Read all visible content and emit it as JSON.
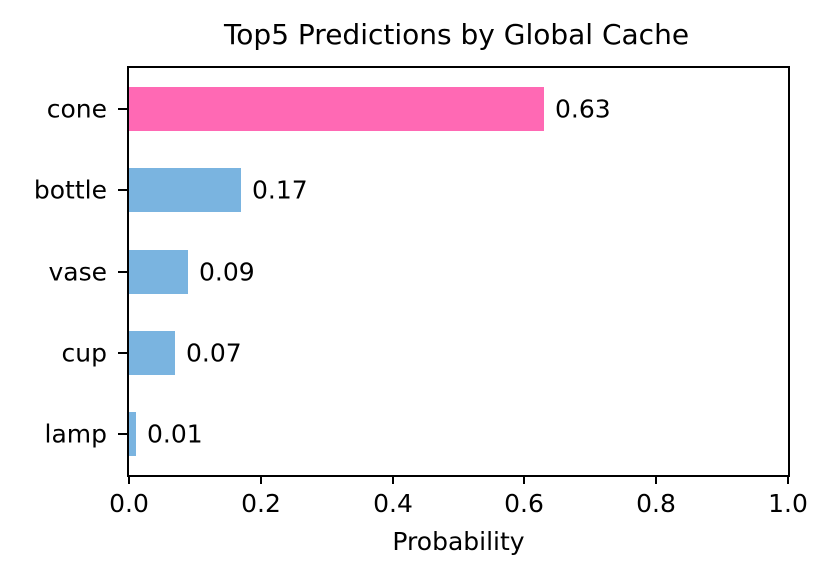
{
  "chart_data": {
    "type": "bar",
    "orientation": "horizontal",
    "title": "Top5 Predictions by Global Cache",
    "xlabel": "Probability",
    "ylabel": "",
    "categories": [
      "cone",
      "bottle",
      "vase",
      "cup",
      "lamp"
    ],
    "values": [
      0.63,
      0.17,
      0.09,
      0.07,
      0.01
    ],
    "value_labels": [
      "0.63",
      "0.17",
      "0.09",
      "0.07",
      "0.01"
    ],
    "bar_colors": [
      "#FF69B4",
      "#7AB4E0",
      "#7AB4E0",
      "#7AB4E0",
      "#7AB4E0"
    ],
    "xlim": [
      0.0,
      1.0
    ],
    "xticks": [
      0.0,
      0.2,
      0.4,
      0.6,
      0.8,
      1.0
    ],
    "xtick_labels": [
      "0.0",
      "0.2",
      "0.4",
      "0.6",
      "0.8",
      "1.0"
    ],
    "grid": false,
    "legend": null,
    "frame": "full-box",
    "axis_color": "#000000",
    "text_color": "#000000",
    "background_color": "#ffffff"
  }
}
